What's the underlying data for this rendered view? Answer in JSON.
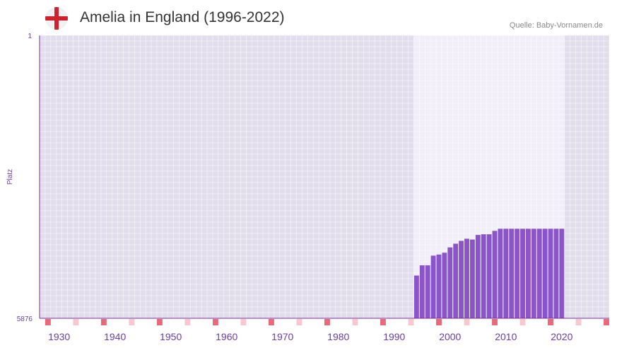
{
  "header": {
    "flag_icon": "england-flag-icon",
    "title": "Amelia in England (1996-2022)",
    "source": "Quelle: Baby-Vornamen.de"
  },
  "colors": {
    "bar": "#8b55c9",
    "grid_bg": "#e2ddec",
    "highlight_bg": "#f1eef9",
    "axis": "#7b2d94",
    "tick_text": "#6a3ea6",
    "decade_marker": "#e8697a",
    "half_marker": "#f7c8d0"
  },
  "chart_data": {
    "type": "bar",
    "title": "Amelia in England (1996-2022)",
    "xlabel": "",
    "ylabel": "Platz",
    "x_range": [
      1927,
      2028
    ],
    "y_range_rank": [
      1,
      5876
    ],
    "ytick_labels": [
      "1",
      "5876"
    ],
    "xtick_labels": [
      "1930",
      "1940",
      "1950",
      "1960",
      "1970",
      "1980",
      "1990",
      "2000",
      "2010",
      "2020"
    ],
    "highlight_range": [
      1994,
      2020
    ],
    "years": [
      1994,
      1995,
      1996,
      1997,
      1998,
      1999,
      2000,
      2001,
      2002,
      2003,
      2004,
      2005,
      2006,
      2007,
      2008,
      2009,
      2010,
      2011,
      2012,
      2013,
      2014,
      2015,
      2016,
      2017,
      2018,
      2019,
      2020
    ],
    "values": [
      4988,
      4776,
      4776,
      4575,
      4552,
      4514,
      4404,
      4327,
      4268,
      4224,
      4240,
      4145,
      4131,
      4131,
      4060,
      4016,
      4016,
      4016,
      4016,
      4016,
      4016,
      4016,
      4016,
      4016,
      4016,
      4016,
      4016
    ]
  }
}
